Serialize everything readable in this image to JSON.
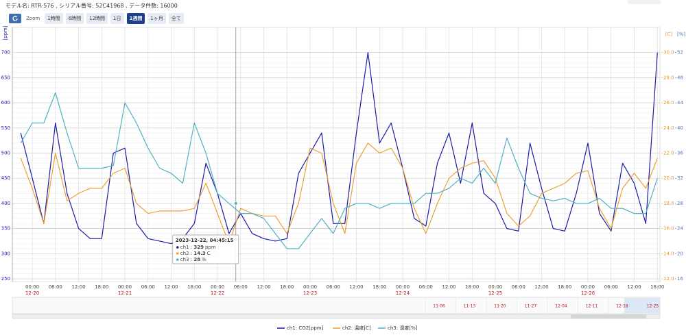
{
  "header": "モデル名: RTR-576 , シリアル番号: 52C41968 , データ件数: 16000",
  "zoom": {
    "label": "Zoom",
    "buttons": [
      "1時間",
      "6時間",
      "12時間",
      "1日",
      "1週間",
      "1ヶ月",
      "全て"
    ],
    "selected": 4
  },
  "navigator": {
    "dates": [
      "11-06",
      "11-13",
      "11-20",
      "11-27",
      "12-04",
      "12-11",
      "12-18",
      "12-25"
    ]
  },
  "chart_data": {
    "type": "line",
    "ylabel": "[ppm]",
    "y2label": "[C]",
    "y3label": "[%]",
    "xlim": [
      "2023-12-19 18:50",
      "2023-12-26 18:40"
    ],
    "ylim": [
      250,
      750
    ],
    "yticks": [
      250,
      300,
      350,
      400,
      450,
      500,
      550,
      600,
      650,
      700
    ],
    "y2lim": [
      12,
      32
    ],
    "y2ticks": [
      {
        "value": 12,
        "label": "12.0"
      },
      {
        "value": 14,
        "label": "14.0"
      },
      {
        "value": 16,
        "label": "16.0"
      },
      {
        "value": 18,
        "label": "18.0"
      },
      {
        "value": 20,
        "label": "20.0"
      },
      {
        "value": 22,
        "label": "22.0"
      },
      {
        "value": 24,
        "label": "24.0"
      },
      {
        "value": 26,
        "label": "26.0"
      },
      {
        "value": 28,
        "label": "28.0"
      },
      {
        "value": 30,
        "label": "30.0"
      }
    ],
    "y3lim": [
      16,
      56
    ],
    "y3ticks": [
      16,
      20,
      24,
      28,
      32,
      36,
      40,
      44,
      48,
      52
    ],
    "xticks": [
      {
        "value": "2023-12-20 00:00",
        "label": "00:00"
      },
      {
        "value": "2023-12-20 06:00",
        "label": "06:00"
      },
      {
        "value": "2023-12-20 12:00",
        "label": "12:00"
      },
      {
        "value": "2023-12-20 18:00",
        "label": "18:00"
      },
      {
        "value": "2023-12-21 00:00",
        "label": "00:00"
      },
      {
        "value": "2023-12-21 06:00",
        "label": "06:00"
      },
      {
        "value": "2023-12-21 12:00",
        "label": "12:00"
      },
      {
        "value": "2023-12-21 18:00",
        "label": "18:00"
      },
      {
        "value": "2023-12-22 00:00",
        "label": "00:00"
      },
      {
        "value": "2023-12-22 06:00",
        "label": "06:00"
      },
      {
        "value": "2023-12-22 12:00",
        "label": "12:00"
      },
      {
        "value": "2023-12-22 18:00",
        "label": "18:00"
      },
      {
        "value": "2023-12-23 00:00",
        "label": "00:00"
      },
      {
        "value": "2023-12-23 06:00",
        "label": "06:00"
      },
      {
        "value": "2023-12-23 12:00",
        "label": "12:00"
      },
      {
        "value": "2023-12-23 18:00",
        "label": "18:00"
      },
      {
        "value": "2023-12-24 00:00",
        "label": "00:00"
      },
      {
        "value": "2023-12-24 06:00",
        "label": "06:00"
      },
      {
        "value": "2023-12-24 12:00",
        "label": "12:00"
      },
      {
        "value": "2023-12-24 18:00",
        "label": "18:00"
      },
      {
        "value": "2023-12-25 00:00",
        "label": "00:00"
      },
      {
        "value": "2023-12-25 06:00",
        "label": "06:00"
      },
      {
        "value": "2023-12-25 12:00",
        "label": "12:00"
      },
      {
        "value": "2023-12-25 18:00",
        "label": "18:00"
      },
      {
        "value": "2023-12-26 00:00",
        "label": "00:00"
      },
      {
        "value": "2023-12-26 06:00",
        "label": "06:00"
      },
      {
        "value": "2023-12-26 12:00",
        "label": "12:00"
      },
      {
        "value": "2023-12-26 18:00",
        "label": "18:00"
      }
    ],
    "xtick_dates": [
      {
        "value": "2023-12-20 00:00",
        "label": "12-20"
      },
      {
        "value": "2023-12-21 00:00",
        "label": "12-21"
      },
      {
        "value": "2023-12-22 00:00",
        "label": "12-22"
      },
      {
        "value": "2023-12-23 00:00",
        "label": "12-23"
      },
      {
        "value": "2023-12-24 00:00",
        "label": "12-24"
      },
      {
        "value": "2023-12-25 00:00",
        "label": "12-25"
      },
      {
        "value": "2023-12-26 00:00",
        "label": "12-26"
      }
    ],
    "x": [
      "2023-12-19 21:00",
      "2023-12-20 00:00",
      "2023-12-20 03:00",
      "2023-12-20 06:00",
      "2023-12-20 09:00",
      "2023-12-20 12:00",
      "2023-12-20 15:00",
      "2023-12-20 18:00",
      "2023-12-20 21:00",
      "2023-12-21 00:00",
      "2023-12-21 03:00",
      "2023-12-21 06:00",
      "2023-12-21 09:00",
      "2023-12-21 12:00",
      "2023-12-21 15:00",
      "2023-12-21 18:00",
      "2023-12-21 21:00",
      "2023-12-22 00:00",
      "2023-12-22 03:00",
      "2023-12-22 06:00",
      "2023-12-22 09:00",
      "2023-12-22 12:00",
      "2023-12-22 15:00",
      "2023-12-22 18:00",
      "2023-12-22 21:00",
      "2023-12-23 00:00",
      "2023-12-23 03:00",
      "2023-12-23 06:00",
      "2023-12-23 09:00",
      "2023-12-23 12:00",
      "2023-12-23 15:00",
      "2023-12-23 18:00",
      "2023-12-23 21:00",
      "2023-12-24 00:00",
      "2023-12-24 03:00",
      "2023-12-24 06:00",
      "2023-12-24 09:00",
      "2023-12-24 12:00",
      "2023-12-24 15:00",
      "2023-12-24 18:00",
      "2023-12-24 21:00",
      "2023-12-25 00:00",
      "2023-12-25 03:00",
      "2023-12-25 06:00",
      "2023-12-25 09:00",
      "2023-12-25 12:00",
      "2023-12-25 15:00",
      "2023-12-25 18:00",
      "2023-12-25 21:00",
      "2023-12-26 00:00",
      "2023-12-26 03:00",
      "2023-12-26 06:00",
      "2023-12-26 09:00",
      "2023-12-26 12:00",
      "2023-12-26 15:00",
      "2023-12-26 18:00"
    ],
    "series": [
      {
        "name": "ch1: CO2[ppm]",
        "color": "#1a1aa8",
        "values": [
          540,
          450,
          360,
          560,
          420,
          350,
          330,
          330,
          500,
          510,
          360,
          330,
          325,
          320,
          330,
          360,
          480,
          420,
          340,
          380,
          340,
          330,
          325,
          330,
          460,
          500,
          540,
          360,
          360,
          540,
          700,
          520,
          560,
          470,
          370,
          355,
          480,
          540,
          440,
          560,
          420,
          400,
          350,
          345,
          520,
          430,
          350,
          345,
          420,
          520,
          380,
          345,
          480,
          440,
          360,
          700
        ]
      },
      {
        "name": "ch2: 温度[C]",
        "color": "#eba235",
        "axis": "y2",
        "values": [
          21.6,
          19.2,
          16.4,
          22.0,
          18.2,
          18.8,
          19.2,
          19.2,
          20.4,
          20.8,
          18.0,
          17.2,
          17.4,
          17.4,
          17.4,
          17.6,
          19.6,
          17.2,
          14.8,
          17.6,
          17.2,
          17.0,
          17.0,
          15.6,
          18.0,
          22.4,
          22.0,
          18.0,
          15.6,
          21.2,
          22.8,
          22.0,
          22.4,
          20.8,
          17.6,
          15.6,
          18.0,
          20.0,
          20.8,
          21.2,
          21.4,
          20.0,
          17.2,
          16.2,
          17.0,
          18.8,
          19.2,
          19.6,
          20.4,
          20.6,
          17.6,
          16.0,
          19.2,
          20.4,
          19.2,
          21.6
        ]
      },
      {
        "name": "ch3: 湿度[%]",
        "color": "#4fb0c2",
        "axis": "y3",
        "values": [
          37.6,
          40.8,
          40.8,
          45.6,
          39.2,
          33.6,
          33.6,
          33.6,
          34.0,
          44.0,
          40.8,
          36.8,
          33.6,
          32.8,
          31.2,
          40.8,
          36.0,
          29.6,
          28.0,
          26.4,
          26.4,
          25.6,
          23.2,
          20.8,
          20.8,
          23.2,
          25.6,
          23.2,
          27.2,
          28.0,
          28.0,
          27.2,
          28.0,
          28.0,
          28.0,
          29.6,
          29.6,
          30.4,
          32.0,
          31.2,
          33.6,
          31.2,
          38.4,
          33.6,
          29.6,
          28.8,
          28.4,
          28.8,
          28.0,
          28.0,
          28.8,
          27.2,
          27.2,
          26.4,
          26.4,
          32.0
        ]
      }
    ],
    "tooltip": {
      "title": "2023-12-22, 04:45:15",
      "items": [
        {
          "name": "ch1",
          "value": 329,
          "unit": "ppm"
        },
        {
          "name": "ch2",
          "value": 14.3,
          "unit": "C"
        },
        {
          "name": "ch3",
          "value": 28,
          "unit": "%"
        }
      ]
    },
    "grid": true
  }
}
